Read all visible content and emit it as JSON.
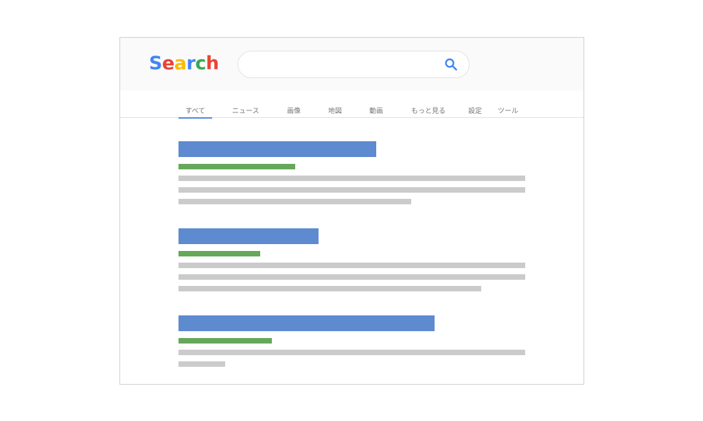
{
  "logo": {
    "letters": [
      {
        "ch": "S",
        "color": "#4285f4"
      },
      {
        "ch": "e",
        "color": "#ea4335"
      },
      {
        "ch": "a",
        "color": "#fbbc05"
      },
      {
        "ch": "r",
        "color": "#4285f4"
      },
      {
        "ch": "c",
        "color": "#34a853"
      },
      {
        "ch": "h",
        "color": "#ea4335"
      }
    ]
  },
  "search": {
    "value": "",
    "icon": "search-icon"
  },
  "tabs": [
    {
      "label": "すべて",
      "active": true
    },
    {
      "label": "ニュース"
    },
    {
      "label": "画像"
    },
    {
      "label": "地図"
    },
    {
      "label": "動画"
    },
    {
      "label": "もっと見る"
    },
    {
      "label": "設定"
    },
    {
      "label": "ツール"
    }
  ],
  "colors": {
    "title": "#5e8ad0",
    "url": "#65a85a",
    "snippet": "#cbcbcb",
    "accent": "#4e86e4"
  }
}
